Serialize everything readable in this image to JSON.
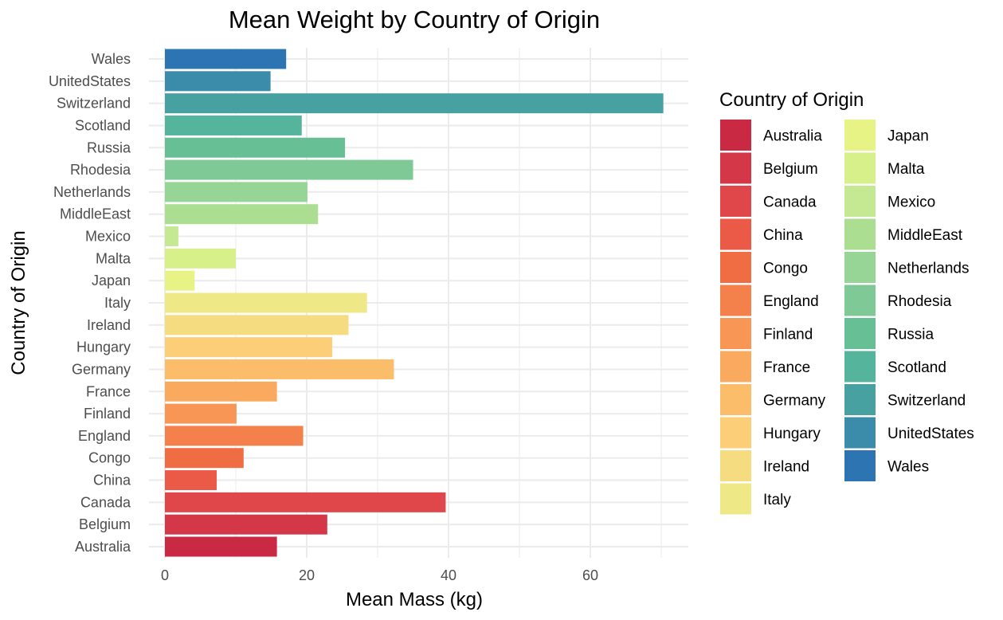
{
  "chart_data": {
    "type": "bar",
    "orientation": "horizontal",
    "title": "Mean Weight by Country of Origin",
    "xlabel": "Mean Mass (kg)",
    "ylabel": "Country of Origin",
    "xlim": [
      0,
      73
    ],
    "x_ticks": [
      0,
      20,
      40,
      60
    ],
    "x_tick_labels": [
      "0",
      "20",
      "40",
      "60"
    ],
    "grid": true,
    "legend": {
      "title": "Country of Origin",
      "position": "right",
      "columns": 2
    },
    "categories": [
      "Australia",
      "Belgium",
      "Canada",
      "China",
      "Congo",
      "England",
      "Finland",
      "France",
      "Germany",
      "Hungary",
      "Ireland",
      "Italy",
      "Japan",
      "Malta",
      "Mexico",
      "MiddleEast",
      "Netherlands",
      "Rhodesia",
      "Russia",
      "Scotland",
      "Switzerland",
      "UnitedStates",
      "Wales"
    ],
    "values": [
      15.8,
      22.9,
      39.6,
      7.3,
      11.1,
      19.5,
      10.1,
      15.8,
      32.3,
      23.6,
      25.9,
      28.5,
      4.2,
      10.0,
      1.9,
      21.6,
      20.1,
      35.0,
      25.4,
      19.3,
      70.3,
      14.9,
      17.1
    ],
    "colors": [
      "#C92943",
      "#D43848",
      "#E0474A",
      "#EA5A46",
      "#F06C43",
      "#F4814C",
      "#F89655",
      "#F9AA5F",
      "#FBBD69",
      "#FBCE77",
      "#F6DC81",
      "#EFE886",
      "#E8F385",
      "#D8F08A",
      "#C5E993",
      "#ACDE92",
      "#96D596",
      "#7FC997",
      "#67BF95",
      "#55B59C",
      "#48A1A1",
      "#3B8CAA",
      "#2D74B3"
    ]
  }
}
